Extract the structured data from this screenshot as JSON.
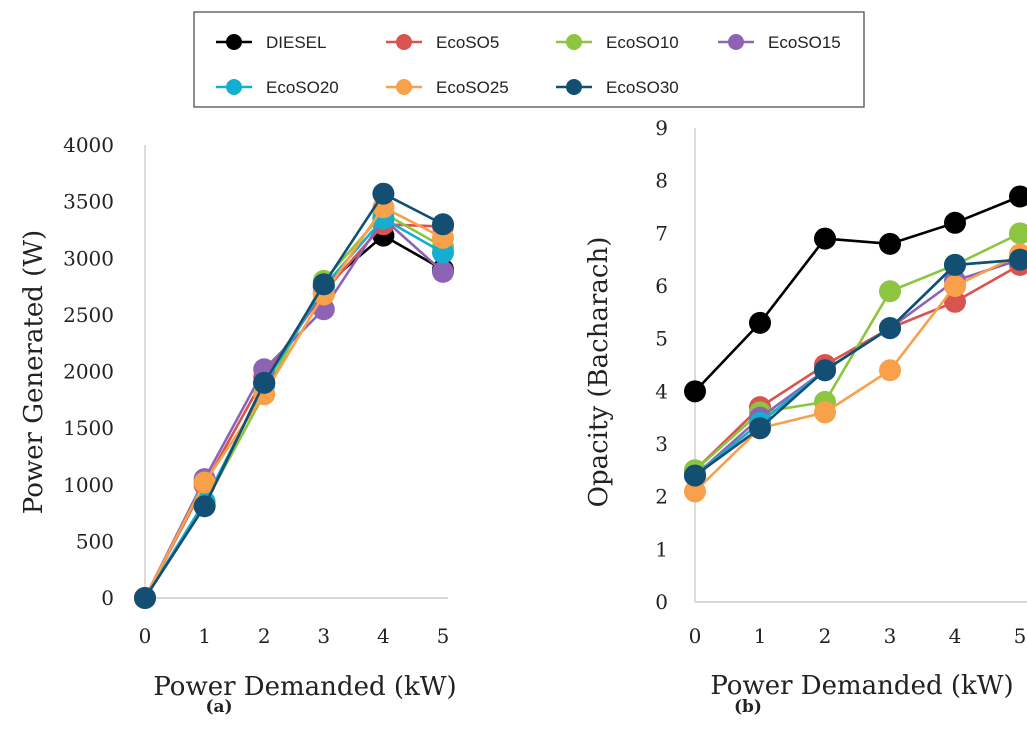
{
  "legend": [
    {
      "name": "DIESEL",
      "color": "#000000"
    },
    {
      "name": "EcoSO5",
      "color": "#d9534f"
    },
    {
      "name": "EcoSO10",
      "color": "#8cc641"
    },
    {
      "name": "EcoSO15",
      "color": "#8e63b6"
    },
    {
      "name": "EcoSO20",
      "color": "#14aed2"
    },
    {
      "name": "EcoSO25",
      "color": "#f9a04a"
    },
    {
      "name": "EcoSO30",
      "color": "#134f73"
    }
  ],
  "chart_data": [
    {
      "type": "line",
      "panel_label": "(a)",
      "xlabel": "Power Demanded (kW)",
      "ylabel": "Power Generated (W)",
      "x": [
        0,
        1,
        2,
        3,
        4,
        5
      ],
      "xlim": [
        0,
        5
      ],
      "ylim": [
        0,
        4000
      ],
      "yticks": [
        0,
        500,
        1000,
        1500,
        2000,
        2500,
        3000,
        3500,
        4000
      ],
      "grid": false,
      "legend_position": "top",
      "series": [
        {
          "name": "DIESEL",
          "color": "#000000",
          "values": [
            0,
            820,
            1900,
            2750,
            3200,
            2900
          ]
        },
        {
          "name": "EcoSO5",
          "color": "#d9534f",
          "values": [
            0,
            1000,
            1950,
            2700,
            3300,
            3280
          ]
        },
        {
          "name": "EcoSO10",
          "color": "#8cc641",
          "values": [
            0,
            830,
            1800,
            2800,
            3400,
            3100
          ]
        },
        {
          "name": "EcoSO15",
          "color": "#8e63b6",
          "values": [
            0,
            1050,
            2020,
            2550,
            3350,
            2880
          ]
        },
        {
          "name": "EcoSO20",
          "color": "#14aed2",
          "values": [
            0,
            850,
            1880,
            2750,
            3350,
            3050
          ]
        },
        {
          "name": "EcoSO25",
          "color": "#f9a04a",
          "values": [
            0,
            1020,
            1800,
            2680,
            3450,
            3180
          ]
        },
        {
          "name": "EcoSO30",
          "color": "#134f73",
          "values": [
            0,
            810,
            1900,
            2770,
            3570,
            3300
          ]
        }
      ]
    },
    {
      "type": "line",
      "panel_label": "(b)",
      "xlabel": "Power Demanded (kW)",
      "ylabel": "Opacity (Bacharach)",
      "x": [
        0,
        1,
        2,
        3,
        4,
        5
      ],
      "xlim": [
        0,
        5
      ],
      "ylim": [
        0,
        9
      ],
      "yticks": [
        0,
        1,
        2,
        3,
        4,
        5,
        6,
        7,
        8,
        9
      ],
      "grid": false,
      "legend_position": "top",
      "series": [
        {
          "name": "DIESEL",
          "color": "#000000",
          "values": [
            4.0,
            5.3,
            6.9,
            6.8,
            7.2,
            7.7
          ]
        },
        {
          "name": "EcoSO5",
          "color": "#d9534f",
          "values": [
            2.5,
            3.7,
            4.5,
            5.2,
            5.7,
            6.4
          ]
        },
        {
          "name": "EcoSO10",
          "color": "#8cc641",
          "values": [
            2.5,
            3.6,
            3.8,
            5.9,
            6.4,
            7.0
          ]
        },
        {
          "name": "EcoSO15",
          "color": "#8e63b6",
          "values": [
            2.4,
            3.5,
            4.4,
            5.2,
            6.1,
            6.5
          ]
        },
        {
          "name": "EcoSO20",
          "color": "#14aed2",
          "values": [
            2.4,
            3.4,
            4.4,
            5.2,
            6.4,
            6.5
          ]
        },
        {
          "name": "EcoSO25",
          "color": "#f9a04a",
          "values": [
            2.1,
            3.3,
            3.6,
            4.4,
            6.0,
            6.6
          ]
        },
        {
          "name": "EcoSO30",
          "color": "#134f73",
          "values": [
            2.4,
            3.3,
            4.4,
            5.2,
            6.4,
            6.5
          ]
        }
      ]
    }
  ]
}
